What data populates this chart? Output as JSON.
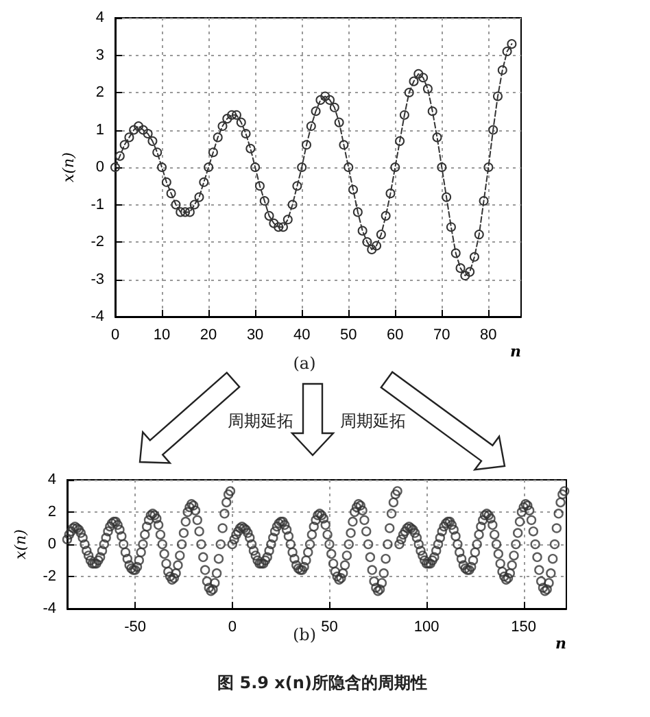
{
  "chart_data": [
    {
      "type": "line",
      "xlabel": "n",
      "ylabel": "x(n)",
      "xlim": [
        0,
        87
      ],
      "ylim": [
        -4,
        4
      ],
      "xticks": [
        0,
        10,
        20,
        30,
        40,
        50,
        60,
        70,
        80
      ],
      "yticks": [
        -4,
        -3,
        -2,
        -1,
        0,
        1,
        2,
        3,
        4
      ],
      "grid": true,
      "marker": "circle",
      "line_style": "dashed",
      "annotations": [
        "(a)",
        "周期延拓",
        "周期延拓"
      ],
      "series": [
        {
          "color": "#333333",
          "x": [
            0,
            1,
            2,
            3,
            4,
            5,
            6,
            7,
            8,
            9,
            10,
            11,
            12,
            13,
            14,
            15,
            16,
            17,
            18,
            19,
            20,
            21,
            22,
            23,
            24,
            25,
            26,
            27,
            28,
            29,
            30,
            31,
            32,
            33,
            34,
            35,
            36,
            37,
            38,
            39,
            40,
            41,
            42,
            43,
            44,
            45,
            46,
            47,
            48,
            49,
            50,
            51,
            52,
            53,
            54,
            55,
            56,
            57,
            58,
            59,
            60,
            61,
            62,
            63,
            64,
            65,
            66,
            67,
            68,
            69,
            70,
            71,
            72,
            73,
            74,
            75,
            76,
            77,
            78,
            79,
            80,
            81,
            82,
            83,
            84,
            85
          ],
          "values": [
            0,
            0.3,
            0.6,
            0.8,
            1.0,
            1.1,
            1.0,
            0.9,
            0.7,
            0.4,
            0,
            -0.4,
            -0.7,
            -1.0,
            -1.2,
            -1.2,
            -1.2,
            -1.0,
            -0.8,
            -0.4,
            0,
            0.4,
            0.8,
            1.1,
            1.3,
            1.4,
            1.4,
            1.2,
            0.9,
            0.5,
            0,
            -0.5,
            -0.9,
            -1.3,
            -1.5,
            -1.6,
            -1.6,
            -1.4,
            -1.0,
            -0.5,
            0,
            0.6,
            1.1,
            1.5,
            1.8,
            1.9,
            1.8,
            1.6,
            1.2,
            0.6,
            0,
            -0.6,
            -1.2,
            -1.7,
            -2.0,
            -2.2,
            -2.1,
            -1.8,
            -1.3,
            -0.7,
            0,
            0.7,
            1.4,
            2.0,
            2.3,
            2.5,
            2.4,
            2.1,
            1.5,
            0.8,
            0,
            -0.8,
            -1.6,
            -2.3,
            -2.7,
            -2.9,
            -2.8,
            -2.4,
            -1.8,
            -0.9,
            0,
            1.0,
            1.9,
            2.6,
            3.1,
            3.3
          ]
        }
      ]
    },
    {
      "type": "scatter",
      "xlabel": "n",
      "ylabel": "x(n)",
      "xlim": [
        -85,
        172
      ],
      "ylim": [
        -4,
        4
      ],
      "xticks": [
        -50,
        0,
        50,
        100,
        150
      ],
      "yticks": [
        -4,
        -2,
        0,
        2,
        4
      ],
      "grid": true,
      "marker": "circle",
      "annotations": [
        "(b)",
        "图 5.9  x(n)所隐含的周期性"
      ],
      "series": [
        {
          "color": "#333333",
          "x": [
            -85,
            -84,
            -83,
            -82,
            -81,
            -80,
            -79,
            -78,
            -77,
            -76,
            -75,
            -74,
            -73,
            -72,
            -71,
            -70,
            -69,
            -68,
            -67,
            -66,
            -65,
            -64,
            -63,
            -62,
            -61,
            -60,
            -59,
            -58,
            -57,
            -56,
            -55,
            -54,
            -53,
            -52,
            -51,
            -50,
            -49,
            -48,
            -47,
            -46,
            -45,
            -44,
            -43,
            -42,
            -41,
            -40,
            -39,
            -38,
            -37,
            -36,
            -35,
            -34,
            -33,
            -32,
            -31,
            -30,
            -29,
            -28,
            -27,
            -26,
            -25,
            -24,
            -23,
            -22,
            -21,
            -20,
            -19,
            -18,
            -17,
            -16,
            -15,
            -14,
            -13,
            -12,
            -11,
            -10,
            -9,
            -8,
            -7,
            -6,
            -5,
            -4,
            -3,
            -2,
            -1,
            0,
            1,
            2,
            3,
            4,
            5,
            6,
            7,
            8,
            9,
            10,
            11,
            12,
            13,
            14,
            15,
            16,
            17,
            18,
            19,
            20,
            21,
            22,
            23,
            24,
            25,
            26,
            27,
            28,
            29,
            30,
            31,
            32,
            33,
            34,
            35,
            36,
            37,
            38,
            39,
            40,
            41,
            42,
            43,
            44,
            45,
            46,
            47,
            48,
            49,
            50,
            51,
            52,
            53,
            54,
            55,
            56,
            57,
            58,
            59,
            60,
            61,
            62,
            63,
            64,
            65,
            66,
            67,
            68,
            69,
            70,
            71,
            72,
            73,
            74,
            75,
            76,
            77,
            78,
            79,
            80,
            81,
            82,
            83,
            84,
            85,
            86,
            87,
            88,
            89,
            90,
            91,
            92,
            93,
            94,
            95,
            96,
            97,
            98,
            99,
            100,
            101,
            102,
            103,
            104,
            105,
            106,
            107,
            108,
            109,
            110,
            111,
            112,
            113,
            114,
            115,
            116,
            117,
            118,
            119,
            120,
            121,
            122,
            123,
            124,
            125,
            126,
            127,
            128,
            129,
            130,
            131,
            132,
            133,
            134,
            135,
            136,
            137,
            138,
            139,
            140,
            141,
            142,
            143,
            144,
            145,
            146,
            147,
            148,
            149,
            150,
            151,
            152,
            153,
            154,
            155,
            156,
            157,
            158,
            159,
            160,
            161,
            162,
            163,
            164,
            165,
            166,
            167,
            168,
            169,
            170,
            171
          ],
          "values": [
            0.3,
            0.6,
            0.8,
            1.0,
            1.1,
            1.0,
            0.9,
            0.7,
            0.4,
            0,
            -0.4,
            -0.7,
            -1.0,
            -1.2,
            -1.2,
            -1.2,
            -1.0,
            -0.8,
            -0.4,
            0,
            0.4,
            0.8,
            1.1,
            1.3,
            1.4,
            1.4,
            1.2,
            0.9,
            0.5,
            0,
            -0.5,
            -0.9,
            -1.3,
            -1.5,
            -1.6,
            -1.6,
            -1.4,
            -1.0,
            -0.5,
            0,
            0.6,
            1.1,
            1.5,
            1.8,
            1.9,
            1.8,
            1.6,
            1.2,
            0.6,
            0,
            -0.6,
            -1.2,
            -1.7,
            -2.0,
            -2.2,
            -2.1,
            -1.8,
            -1.3,
            -0.7,
            0,
            0.7,
            1.4,
            2.0,
            2.3,
            2.5,
            2.4,
            2.1,
            1.5,
            0.8,
            0,
            -0.8,
            -1.6,
            -2.3,
            -2.7,
            -2.9,
            -2.8,
            -2.4,
            -1.8,
            -0.9,
            0,
            1.0,
            1.9,
            2.6,
            3.1,
            3.3,
            0,
            0.3,
            0.6,
            0.8,
            1.0,
            1.1,
            1.0,
            0.9,
            0.7,
            0.4,
            0,
            -0.4,
            -0.7,
            -1.0,
            -1.2,
            -1.2,
            -1.2,
            -1.0,
            -0.8,
            -0.4,
            0,
            0.4,
            0.8,
            1.1,
            1.3,
            1.4,
            1.4,
            1.2,
            0.9,
            0.5,
            0,
            -0.5,
            -0.9,
            -1.3,
            -1.5,
            -1.6,
            -1.6,
            -1.4,
            -1.0,
            -0.5,
            0,
            0.6,
            1.1,
            1.5,
            1.8,
            1.9,
            1.8,
            1.6,
            1.2,
            0.6,
            0,
            -0.6,
            -1.2,
            -1.7,
            -2.0,
            -2.2,
            -2.1,
            -1.8,
            -1.3,
            -0.7,
            0,
            0.7,
            1.4,
            2.0,
            2.3,
            2.5,
            2.4,
            2.1,
            1.5,
            0.8,
            0,
            -0.8,
            -1.6,
            -2.3,
            -2.7,
            -2.9,
            -2.8,
            -2.4,
            -1.8,
            -0.9,
            0,
            1.0,
            1.9,
            2.6,
            3.1,
            3.3,
            0,
            0.3,
            0.6,
            0.8,
            1.0,
            1.1,
            1.0,
            0.9,
            0.7,
            0.4,
            0,
            -0.4,
            -0.7,
            -1.0,
            -1.2,
            -1.2,
            -1.2,
            -1.0,
            -0.8,
            -0.4,
            0,
            0.4,
            0.8,
            1.1,
            1.3,
            1.4,
            1.4,
            1.2,
            0.9,
            0.5,
            0,
            -0.5,
            -0.9,
            -1.3,
            -1.5,
            -1.6,
            -1.6,
            -1.4,
            -1.0,
            -0.5,
            0,
            0.6,
            1.1,
            1.5,
            1.8,
            1.9,
            1.8,
            1.6,
            1.2,
            0.6,
            0,
            -0.6,
            -1.2,
            -1.7,
            -2.0,
            -2.2,
            -2.1,
            -1.8,
            -1.3,
            -0.7,
            0,
            0.7,
            1.4,
            2.0,
            2.3,
            2.5,
            2.4,
            2.1,
            1.5,
            0.8,
            0,
            -0.8,
            -1.6,
            -2.3,
            -2.7,
            -2.9,
            -2.8,
            -2.4,
            -1.8,
            -0.9,
            0,
            1.0,
            1.9,
            2.6,
            3.1,
            3.3
          ]
        }
      ]
    }
  ]
}
